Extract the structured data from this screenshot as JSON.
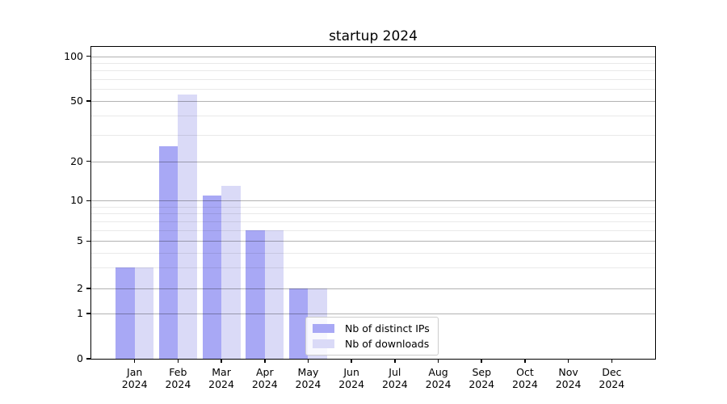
{
  "chart_data": {
    "type": "bar",
    "title": "startup 2024",
    "x_months": [
      "Jan",
      "Feb",
      "Mar",
      "Apr",
      "May",
      "Jun",
      "Jul",
      "Aug",
      "Sep",
      "Oct",
      "Nov",
      "Dec"
    ],
    "x_year": "2024",
    "categories": [
      "Jan 2024",
      "Feb 2024",
      "Mar 2024",
      "Apr 2024",
      "May 2024",
      "Jun 2024",
      "Jul 2024",
      "Aug 2024",
      "Sep 2024",
      "Oct 2024",
      "Nov 2024",
      "Dec 2024"
    ],
    "series": [
      {
        "name": "Nb of distinct IPs",
        "color": "#a8a8f5",
        "values": [
          3,
          25,
          11,
          6,
          2,
          0,
          0,
          0,
          0,
          0,
          0,
          0
        ]
      },
      {
        "name": "Nb of downloads",
        "color": "#dadaf7",
        "values": [
          3,
          55,
          13,
          6,
          2,
          0,
          0,
          0,
          0,
          0,
          0,
          0
        ]
      }
    ],
    "y_major_ticks": [
      0,
      1,
      2,
      5,
      10,
      20,
      50,
      100
    ],
    "y_minor_ticks": [
      3,
      4,
      6,
      7,
      8,
      9,
      30,
      40,
      60,
      70,
      80,
      90
    ],
    "y_scale": "log-like",
    "ylim": [
      0,
      100
    ],
    "grid": "horizontal, major and minor",
    "legend_position": "lower center, inside axes"
  }
}
